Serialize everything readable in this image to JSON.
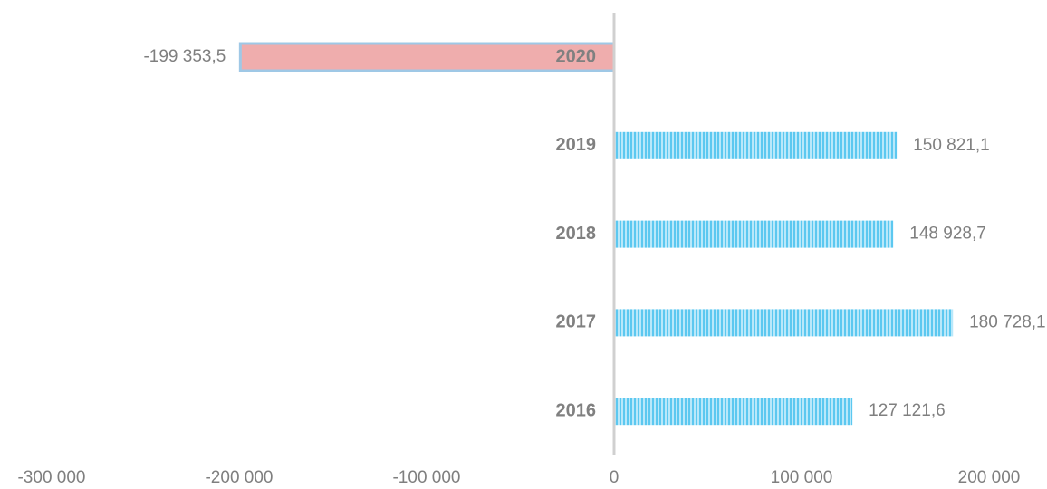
{
  "chart_data": {
    "type": "bar",
    "orientation": "horizontal",
    "categories": [
      "2020",
      "2019",
      "2018",
      "2017",
      "2016"
    ],
    "values": [
      -199353.5,
      150821.1,
      148928.7,
      180728.1,
      127121.6
    ],
    "value_labels": [
      "-199 353,5",
      "150 821,1",
      "148 928,7",
      "180 728,1",
      "127 121,6"
    ],
    "color": "#5cc8f0",
    "negative_color": "#efadad",
    "xlim": [
      -300000,
      200000
    ],
    "xticks": [
      {
        "value": -300000,
        "label": "-300 000"
      },
      {
        "value": -200000,
        "label": "-200 000"
      },
      {
        "value": -100000,
        "label": "-100 000"
      },
      0,
      {
        "value": 100000,
        "label": "100 000"
      },
      {
        "value": 200000,
        "label": "200 000"
      }
    ],
    "grid": false
  }
}
